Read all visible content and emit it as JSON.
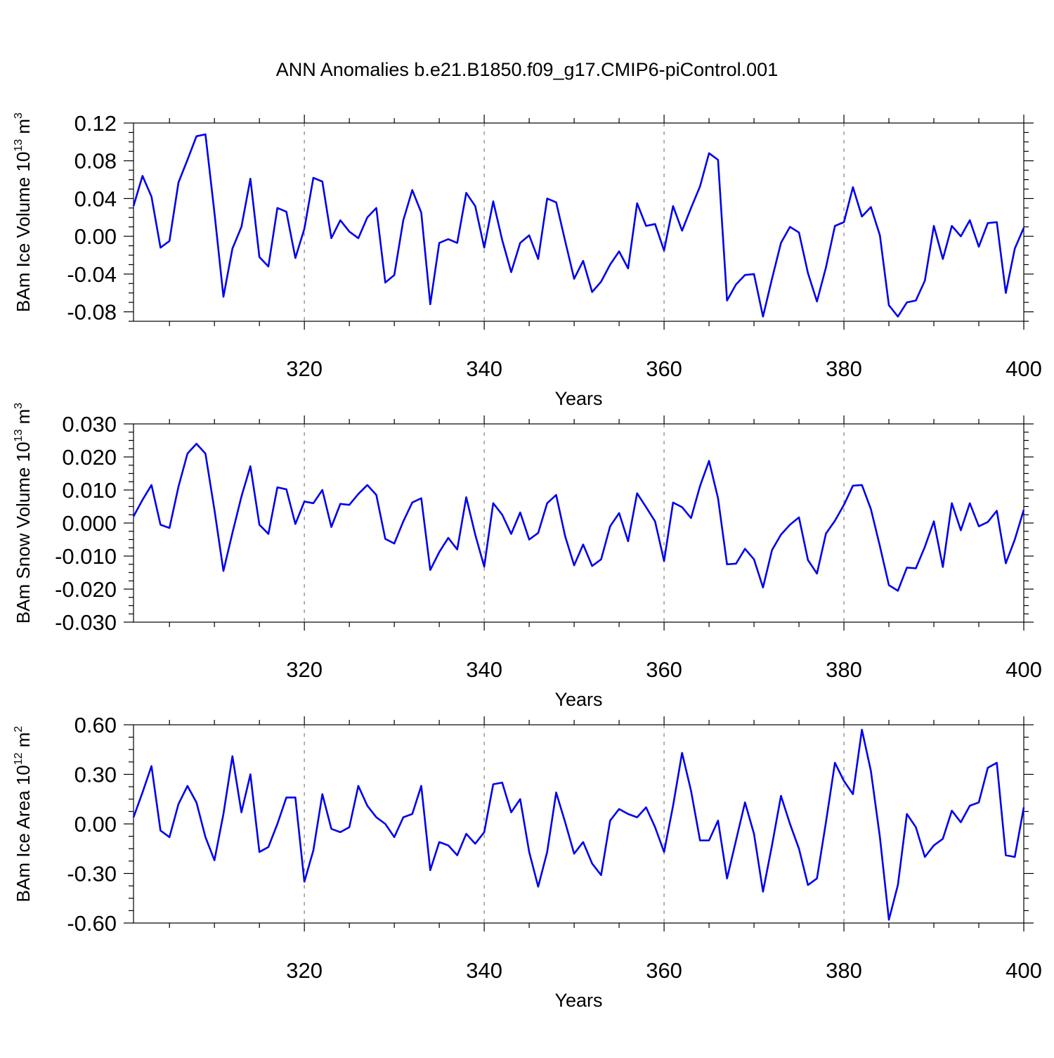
{
  "title": "ANN Anomalies b.e21.B1850.f09_g17.CMIP6-piControl.001",
  "colors": {
    "line": "#0000ee",
    "grid": "#999999",
    "axis": "#000000"
  },
  "chart_data": [
    {
      "type": "line",
      "ylabel": "BAm Ice Volume",
      "yunit_base": "10",
      "yunit_exp": "13",
      "yunit_tail": "m",
      "yunit_tail_exp": "3",
      "xlabel": "Years",
      "xlim": [
        301,
        400
      ],
      "ylim": [
        -0.09,
        0.12
      ],
      "yticks": [
        0.12,
        0.08,
        0.04,
        0.0,
        -0.04,
        -0.08
      ],
      "ytick_labels": [
        "0.12",
        "0.08",
        "0.04",
        "0.00",
        "-0.04",
        "-0.08"
      ],
      "xticks": [
        320,
        340,
        360,
        380,
        400
      ],
      "xtick_labels": [
        "320",
        "340",
        "360",
        "380",
        "400"
      ],
      "grid": "x-dashed",
      "x_start": 301,
      "values": [
        0.032,
        0.064,
        0.042,
        -0.012,
        -0.005,
        0.057,
        0.081,
        0.106,
        0.108,
        0.025,
        -0.064,
        -0.013,
        0.01,
        0.061,
        -0.022,
        -0.032,
        0.03,
        0.026,
        -0.023,
        0.008,
        0.062,
        0.058,
        -0.002,
        0.017,
        0.005,
        -0.002,
        0.02,
        0.03,
        -0.049,
        -0.041,
        0.017,
        0.049,
        0.025,
        -0.072,
        -0.007,
        -0.003,
        -0.007,
        0.046,
        0.032,
        -0.012,
        0.037,
        -0.004,
        -0.038,
        -0.007,
        0.001,
        -0.024,
        0.04,
        0.036,
        -0.005,
        -0.045,
        -0.026,
        -0.059,
        -0.048,
        -0.03,
        -0.016,
        -0.034,
        0.035,
        0.011,
        0.013,
        -0.015,
        0.032,
        0.006,
        0.03,
        0.053,
        0.088,
        0.081,
        -0.068,
        -0.051,
        -0.041,
        -0.04,
        -0.085,
        -0.045,
        -0.007,
        0.01,
        0.004,
        -0.039,
        -0.069,
        -0.033,
        0.011,
        0.015,
        0.052,
        0.021,
        0.031,
        0.001,
        -0.073,
        -0.085,
        -0.07,
        -0.068,
        -0.047,
        0.011,
        -0.024,
        0.011,
        0.0,
        0.017,
        -0.011,
        0.014,
        0.015,
        -0.06,
        -0.013,
        0.009
      ]
    },
    {
      "type": "line",
      "ylabel": "BAm Snow Volume",
      "yunit_base": "10",
      "yunit_exp": "13",
      "yunit_tail": "m",
      "yunit_tail_exp": "3",
      "xlabel": "Years",
      "xlim": [
        301,
        400
      ],
      "ylim": [
        -0.03,
        0.03
      ],
      "yticks": [
        0.03,
        0.02,
        0.01,
        0.0,
        -0.01,
        -0.02,
        -0.03
      ],
      "ytick_labels": [
        "0.030",
        "0.020",
        "0.010",
        "0.000",
        "-0.010",
        "-0.020",
        "-0.030"
      ],
      "xticks": [
        320,
        340,
        360,
        380,
        400
      ],
      "xtick_labels": [
        "320",
        "340",
        "360",
        "380",
        "400"
      ],
      "grid": "x-dashed",
      "x_start": 301,
      "values": [
        0.002,
        0.007,
        0.0115,
        -0.0005,
        -0.0015,
        0.011,
        0.021,
        0.024,
        0.021,
        0.004,
        -0.0145,
        -0.003,
        0.008,
        0.0172,
        -0.0005,
        -0.0033,
        0.0108,
        0.0102,
        -0.0003,
        0.0065,
        0.006,
        0.01,
        -0.0012,
        0.0058,
        0.0055,
        0.0088,
        0.0115,
        0.0085,
        -0.0048,
        -0.0062,
        0.0005,
        0.0062,
        0.0075,
        -0.0142,
        -0.0088,
        -0.0045,
        -0.008,
        0.0078,
        -0.0035,
        -0.0132,
        0.006,
        0.0025,
        -0.0033,
        0.0032,
        -0.005,
        -0.003,
        0.006,
        0.0085,
        -0.004,
        -0.0128,
        -0.0065,
        -0.013,
        -0.011,
        -0.001,
        0.003,
        -0.0055,
        0.009,
        0.0048,
        0.0005,
        -0.0115,
        0.0062,
        0.0048,
        0.0015,
        0.0112,
        0.0188,
        0.0075,
        -0.0125,
        -0.0123,
        -0.0078,
        -0.011,
        -0.0195,
        -0.0082,
        -0.0035,
        -0.0005,
        0.0017,
        -0.0112,
        -0.0153,
        -0.0032,
        0.0007,
        0.0055,
        0.0113,
        0.0115,
        0.0042,
        -0.007,
        -0.0188,
        -0.0205,
        -0.0135,
        -0.0137,
        -0.0072,
        0.0005,
        -0.0133,
        0.006,
        -0.0022,
        0.006,
        -0.001,
        0.0003,
        0.0037,
        -0.0122,
        -0.005,
        0.004
      ]
    },
    {
      "type": "line",
      "ylabel": "BAm Ice Area",
      "yunit_base": "10",
      "yunit_exp": "12",
      "yunit_tail": "m",
      "yunit_tail_exp": "2",
      "xlabel": "Years",
      "xlim": [
        301,
        400
      ],
      "ylim": [
        -0.6,
        0.6
      ],
      "yticks": [
        0.6,
        0.3,
        0.0,
        -0.3,
        -0.6
      ],
      "ytick_labels": [
        "0.60",
        "0.30",
        "0.00",
        "-0.30",
        "-0.60"
      ],
      "xticks": [
        320,
        340,
        360,
        380,
        400
      ],
      "xtick_labels": [
        "320",
        "340",
        "360",
        "380",
        "400"
      ],
      "grid": "x-dashed",
      "x_start": 301,
      "values": [
        0.04,
        0.19,
        0.35,
        -0.04,
        -0.08,
        0.12,
        0.23,
        0.13,
        -0.08,
        -0.22,
        0.06,
        0.41,
        0.07,
        0.3,
        -0.17,
        -0.14,
        0.0,
        0.16,
        0.16,
        -0.35,
        -0.16,
        0.18,
        -0.03,
        -0.05,
        -0.02,
        0.23,
        0.11,
        0.04,
        0.0,
        -0.08,
        0.04,
        0.06,
        0.23,
        -0.28,
        -0.11,
        -0.13,
        -0.19,
        -0.06,
        -0.12,
        -0.05,
        0.24,
        0.25,
        0.07,
        0.15,
        -0.17,
        -0.38,
        -0.17,
        0.19,
        0.01,
        -0.18,
        -0.11,
        -0.24,
        -0.31,
        0.02,
        0.09,
        0.06,
        0.04,
        0.1,
        -0.02,
        -0.17,
        0.11,
        0.43,
        0.2,
        -0.1,
        -0.1,
        0.02,
        -0.33,
        -0.1,
        0.13,
        -0.06,
        -0.41,
        -0.13,
        0.17,
        0.0,
        -0.15,
        -0.37,
        -0.33,
        0.01,
        0.37,
        0.26,
        0.18,
        0.57,
        0.32,
        -0.08,
        -0.58,
        -0.37,
        0.06,
        -0.02,
        -0.2,
        -0.13,
        -0.09,
        0.08,
        0.01,
        0.11,
        0.13,
        0.34,
        0.37,
        -0.19,
        -0.2,
        0.1
      ]
    }
  ]
}
